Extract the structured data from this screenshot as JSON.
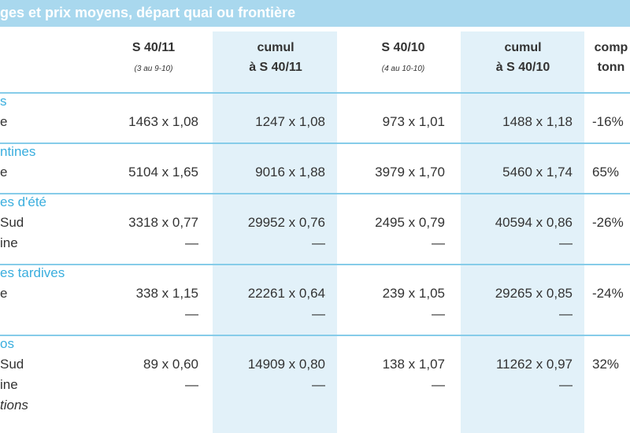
{
  "header": {
    "title": "ges et prix moyens, départ quai ou frontière"
  },
  "table": {
    "columns": [
      {
        "title": "S 40/11",
        "subtitle": "(3 au 9-10)"
      },
      {
        "title": "cumul",
        "subtitle": "à S 40/11"
      },
      {
        "title": "S 40/10",
        "subtitle": "(4 au 10-10)"
      },
      {
        "title": "cumul",
        "subtitle": "à S 40/10"
      },
      {
        "title": "comp",
        "subtitle": "tonn"
      }
    ],
    "sections": [
      {
        "title": "s",
        "rows": [
          {
            "label": "e",
            "cells": [
              "1463 x 1,08",
              "1247 x 1,08",
              "973 x 1,01",
              "1488 x 1,18",
              "-16%"
            ]
          }
        ]
      },
      {
        "title": "ntines",
        "rows": [
          {
            "label": "e",
            "cells": [
              "5104 x 1,65",
              "9016 x 1,88",
              "3979 x 1,70",
              "5460 x 1,74",
              "65%"
            ]
          }
        ]
      },
      {
        "title": "es d'été",
        "rows": [
          {
            "label": "Sud",
            "cells": [
              "3318 x 0,77",
              "29952 x 0,76",
              "2495 x 0,79",
              "40594 x 0,86",
              "-26%"
            ]
          },
          {
            "label": "ine",
            "cells": [
              "—",
              "—",
              "—",
              "—"
            ]
          }
        ]
      },
      {
        "title": "es tardives",
        "rows": [
          {
            "label": "e",
            "cells": [
              "338 x 1,15",
              "22261 x 0,64",
              "239 x 1,05",
              "29265 x 0,85",
              "-24%"
            ]
          },
          {
            "label": null,
            "cells": [
              "—",
              "—",
              "—",
              "—"
            ]
          }
        ]
      },
      {
        "title": "os",
        "rows": [
          {
            "label": "Sud",
            "cells": [
              "89 x 0,60",
              "14909 x 0,80",
              "138 x 1,07",
              "11262 x 0,97",
              "32%"
            ]
          },
          {
            "label": "ine",
            "cells": [
              "—",
              "—",
              "—",
              "—"
            ]
          },
          {
            "label": "tions",
            "italic": true
          }
        ]
      }
    ]
  }
}
